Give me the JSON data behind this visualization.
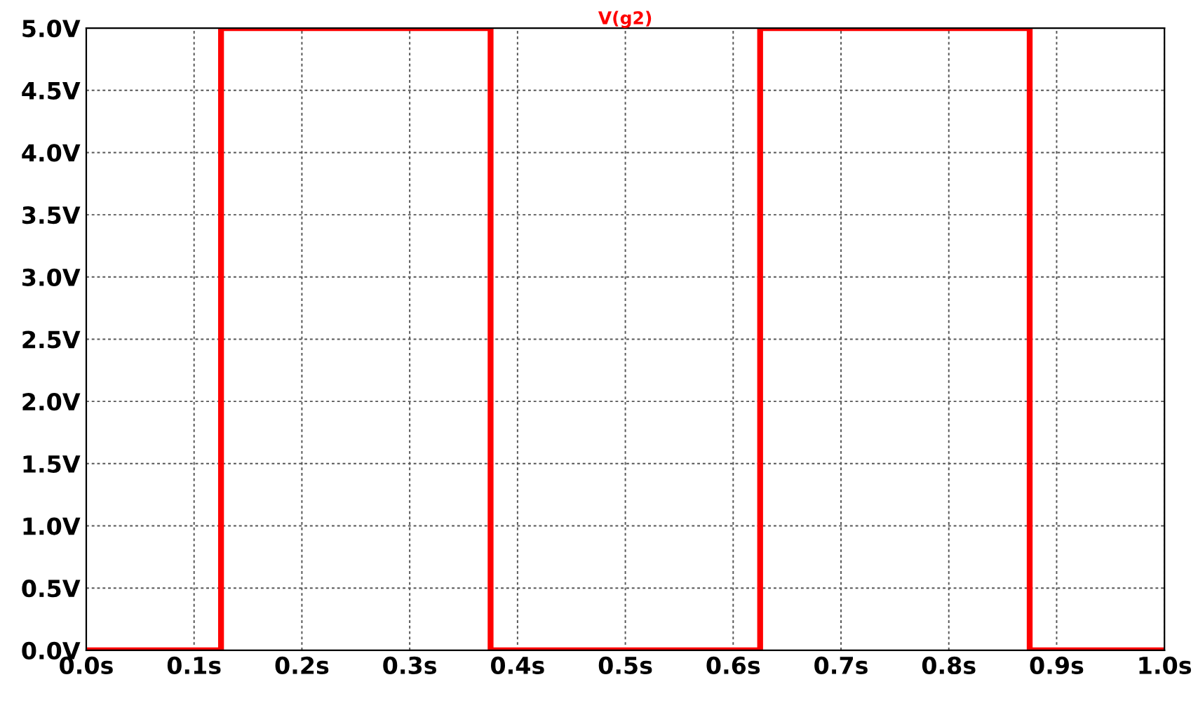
{
  "chart_data": {
    "type": "line",
    "title": "V(g2)",
    "series": [
      {
        "color": "#ff0000",
        "x": [
          0,
          0.125,
          0.125,
          0.375,
          0.375,
          0.625,
          0.625,
          0.875,
          0.875,
          1.0
        ],
        "values": [
          0,
          0,
          5,
          5,
          0,
          0,
          5,
          5,
          0,
          0
        ]
      }
    ],
    "xlim": [
      0,
      1.0
    ],
    "ylim": [
      0,
      5.0
    ],
    "xticks": [
      {
        "value": 0,
        "label": "0.0s"
      },
      {
        "value": 0.1,
        "label": "0.1s"
      },
      {
        "value": 0.2,
        "label": "0.2s"
      },
      {
        "value": 0.3,
        "label": "0.3s"
      },
      {
        "value": 0.4,
        "label": "0.4s"
      },
      {
        "value": 0.5,
        "label": "0.5s"
      },
      {
        "value": 0.6,
        "label": "0.6s"
      },
      {
        "value": 0.7,
        "label": "0.7s"
      },
      {
        "value": 0.8,
        "label": "0.8s"
      },
      {
        "value": 0.9,
        "label": "0.9s"
      },
      {
        "value": 1.0,
        "label": "1.0s"
      }
    ],
    "yticks": [
      {
        "value": 0,
        "label": "0.0V"
      },
      {
        "value": 0.5,
        "label": "0.5V"
      },
      {
        "value": 1.0,
        "label": "1.0V"
      },
      {
        "value": 1.5,
        "label": "1.5V"
      },
      {
        "value": 2.0,
        "label": "2.0V"
      },
      {
        "value": 2.5,
        "label": "2.5V"
      },
      {
        "value": 3.0,
        "label": "3.0V"
      },
      {
        "value": 3.5,
        "label": "3.5V"
      },
      {
        "value": 4.0,
        "label": "4.0V"
      },
      {
        "value": 4.5,
        "label": "4.5V"
      },
      {
        "value": 5.0,
        "label": "5.0V"
      }
    ],
    "grid": true,
    "line_style": "solid",
    "marker": "none"
  }
}
